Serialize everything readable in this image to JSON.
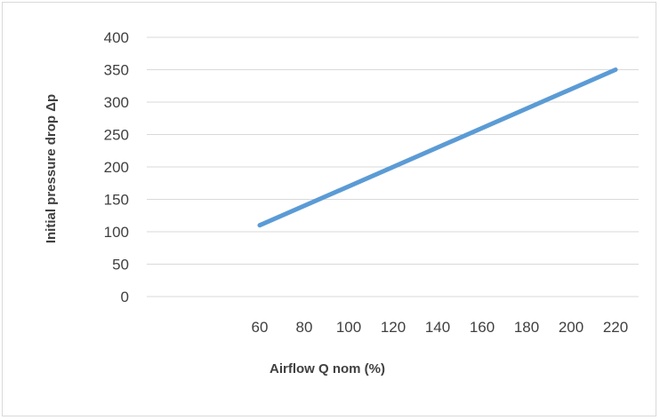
{
  "chart_data": {
    "type": "line",
    "title": "",
    "xlabel": "Airflow Q nom (%)",
    "ylabel": "Initial pressure drop Δp",
    "x_ticks": [
      "60",
      "80",
      "100",
      "120",
      "140",
      "160",
      "180",
      "200",
      "220"
    ],
    "y_ticks": [
      "0",
      "50",
      "100",
      "150",
      "200",
      "250",
      "300",
      "350",
      "400"
    ],
    "ylim": [
      0,
      400
    ],
    "xlim": [
      0,
      220
    ],
    "grid": true,
    "legend": "none",
    "series": [
      {
        "x": [
          60,
          220
        ],
        "y": [
          110,
          350
        ],
        "color": "#5b9bd5"
      }
    ],
    "colors": {
      "line": "#5b9bd5",
      "grid": "#d9d9d9",
      "text": "#404040"
    }
  }
}
